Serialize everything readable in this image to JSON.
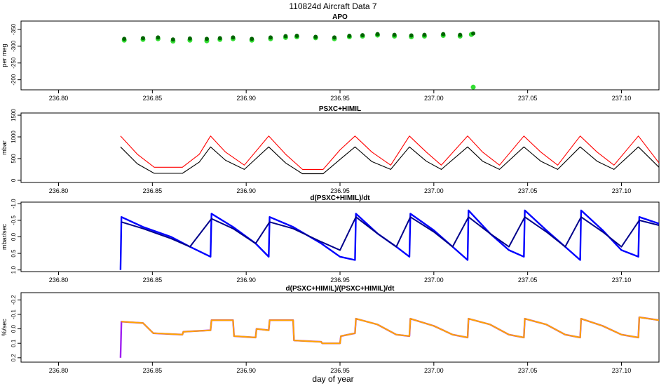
{
  "figure": {
    "title": "110824d   Aircraft Data 7",
    "xlabel": "day of year"
  },
  "colors": {
    "apo_light": "#33dd33",
    "apo_dark": "#006400",
    "psxc_upper": "#ff0000",
    "psxc_lower": "#000000",
    "deriv_light": "#0000ff",
    "deriv_dark": "#00008b",
    "pct_purple": "#a020f0",
    "pct_orange": "#ffa500"
  },
  "chart_data": [
    {
      "type": "scatter",
      "title": "APO",
      "xlabel": "",
      "ylabel": "per meg",
      "xlim": [
        236.78,
        237.12
      ],
      "ylim": [
        -170,
        -375
      ],
      "inverted_y": true,
      "x_ticks": [
        "236.80",
        "236.85",
        "236.90",
        "236.95",
        "237.00",
        "237.05",
        "237.10"
      ],
      "y_ticks": [
        "-200",
        "-250",
        "-300",
        "-350"
      ],
      "y_tick_values": [
        -200,
        -250,
        -300,
        -350
      ],
      "series": [
        {
          "color": "#33dd33",
          "x": [
            236.835,
            236.845,
            236.853,
            236.861,
            236.87,
            236.879,
            236.886,
            236.893,
            236.903,
            236.913,
            236.921,
            236.927,
            236.937,
            236.947,
            236.955,
            236.962,
            236.97,
            236.979,
            236.988,
            236.995,
            237.005,
            237.014,
            237.02,
            237.021
          ],
          "y": [
            -318,
            -320,
            -322,
            -315,
            -318,
            -316,
            -320,
            -322,
            -318,
            -322,
            -326,
            -328,
            -325,
            -322,
            -328,
            -330,
            -333,
            -330,
            -328,
            -330,
            -332,
            -330,
            -335,
            -178
          ]
        },
        {
          "color": "#006400",
          "x": [
            236.835,
            236.845,
            236.853,
            236.861,
            236.87,
            236.879,
            236.886,
            236.893,
            236.903,
            236.913,
            236.921,
            236.927,
            236.937,
            236.947,
            236.955,
            236.962,
            236.97,
            236.979,
            236.988,
            236.995,
            237.005,
            237.014,
            237.021
          ],
          "y": [
            -322,
            -324,
            -326,
            -320,
            -323,
            -322,
            -324,
            -326,
            -322,
            -326,
            -330,
            -331,
            -328,
            -326,
            -331,
            -333,
            -336,
            -334,
            -332,
            -334,
            -336,
            -334,
            -338
          ]
        }
      ]
    },
    {
      "type": "line",
      "title": "PSXC+HIMIL",
      "xlabel": "",
      "ylabel": "mbar",
      "xlim": [
        236.78,
        237.12
      ],
      "ylim": [
        -50,
        1550
      ],
      "x_ticks": [
        "236.80",
        "236.85",
        "236.90",
        "236.95",
        "237.00",
        "237.05",
        "237.10"
      ],
      "y_ticks": [
        "0",
        "500",
        "1000",
        "1500"
      ],
      "y_tick_values": [
        0,
        500,
        1000,
        1500
      ],
      "series": [
        {
          "color": "#ff0000",
          "x": [
            236.833,
            236.842,
            236.851,
            236.866,
            236.875,
            236.881,
            236.889,
            236.899,
            236.912,
            236.921,
            236.93,
            236.941,
            236.95,
            236.958,
            236.967,
            236.977,
            236.987,
            236.996,
            237.004,
            237.018,
            237.026,
            237.035,
            237.048,
            237.057,
            237.066,
            237.078,
            237.087,
            237.096,
            237.109,
            237.12
          ],
          "y": [
            1020,
            600,
            300,
            300,
            600,
            1020,
            650,
            350,
            1020,
            600,
            250,
            250,
            700,
            1020,
            650,
            350,
            1020,
            650,
            350,
            1020,
            650,
            350,
            1020,
            650,
            350,
            1020,
            650,
            350,
            1020,
            400
          ]
        },
        {
          "color": "#000000",
          "x": [
            236.833,
            236.842,
            236.851,
            236.866,
            236.875,
            236.881,
            236.889,
            236.899,
            236.912,
            236.921,
            236.93,
            236.941,
            236.95,
            236.958,
            236.967,
            236.977,
            236.987,
            236.996,
            237.004,
            237.018,
            237.026,
            237.035,
            237.048,
            237.057,
            237.066,
            237.078,
            237.087,
            237.096,
            237.109,
            237.12
          ],
          "y": [
            770,
            380,
            160,
            160,
            420,
            770,
            460,
            250,
            770,
            400,
            150,
            150,
            480,
            770,
            430,
            250,
            770,
            440,
            250,
            770,
            440,
            250,
            770,
            440,
            250,
            770,
            440,
            250,
            770,
            300
          ]
        }
      ]
    },
    {
      "type": "line",
      "title": "d(PSXC+HIMIL)/dt",
      "xlabel": "",
      "ylabel": "mbar/sec",
      "xlim": [
        236.78,
        237.12
      ],
      "ylim": [
        1.05,
        -1.05
      ],
      "inverted_y": true,
      "x_ticks": [
        "236.80",
        "236.85",
        "236.90",
        "236.95",
        "237.00",
        "237.05",
        "237.10"
      ],
      "y_ticks": [
        "-1.0",
        "-0.5",
        "0.0",
        "0.5",
        "1.0"
      ],
      "y_tick_values": [
        -1.0,
        -0.5,
        0.0,
        0.5,
        1.0
      ],
      "series": [
        {
          "color": "#0000ff",
          "x": [
            236.833,
            236.8335,
            236.845,
            236.86,
            236.87,
            236.881,
            236.8815,
            236.893,
            236.905,
            236.912,
            236.9125,
            236.925,
            236.94,
            236.95,
            236.958,
            236.9585,
            236.97,
            236.98,
            236.987,
            236.9875,
            237.0,
            237.01,
            237.018,
            237.0185,
            237.03,
            237.04,
            237.048,
            237.0485,
            237.06,
            237.07,
            237.078,
            237.0785,
            237.09,
            237.1,
            237.109,
            237.1095,
            237.12
          ],
          "y": [
            1.0,
            -0.6,
            -0.3,
            0.0,
            0.3,
            0.6,
            -0.7,
            -0.3,
            0.2,
            0.6,
            -0.6,
            -0.3,
            0.2,
            0.6,
            0.7,
            -0.7,
            -0.1,
            0.3,
            0.6,
            -0.7,
            -0.2,
            0.3,
            0.7,
            -0.8,
            -0.1,
            0.4,
            0.6,
            -0.8,
            -0.2,
            0.3,
            0.7,
            -0.8,
            -0.2,
            0.4,
            0.6,
            -0.6,
            -0.4
          ]
        },
        {
          "color": "#00008b",
          "x": [
            236.8335,
            236.845,
            236.86,
            236.87,
            236.8815,
            236.893,
            236.905,
            236.9125,
            236.925,
            236.94,
            236.95,
            236.9585,
            236.97,
            236.98,
            236.9875,
            237.0,
            237.01,
            237.0185,
            237.03,
            237.04,
            237.0485,
            237.06,
            237.07,
            237.0785,
            237.09,
            237.1,
            237.1095,
            237.12
          ],
          "y": [
            -0.45,
            -0.25,
            0.05,
            0.3,
            -0.55,
            -0.25,
            0.2,
            -0.45,
            -0.25,
            0.15,
            0.4,
            -0.6,
            -0.1,
            0.3,
            -0.6,
            -0.15,
            0.3,
            -0.6,
            -0.1,
            0.3,
            -0.6,
            -0.15,
            0.3,
            -0.6,
            -0.15,
            0.3,
            -0.5,
            -0.35
          ]
        }
      ]
    },
    {
      "type": "line",
      "title": "d(PSXC+HIMIL)/(PSXC+HIMIL)/dt",
      "xlabel": "day of year",
      "ylabel": "%/sec",
      "xlim": [
        236.78,
        237.12
      ],
      "ylim": [
        0.23,
        -0.25
      ],
      "inverted_y": true,
      "x_ticks": [
        "236.80",
        "236.85",
        "236.90",
        "236.95",
        "237.00",
        "237.05",
        "237.10"
      ],
      "y_ticks": [
        "-0.2",
        "-0.1",
        "0.0",
        "0.1",
        "0.2"
      ],
      "y_tick_values": [
        -0.2,
        -0.1,
        0.0,
        0.1,
        0.2
      ],
      "series": [
        {
          "color": "#a020f0",
          "x": [
            236.833,
            236.8335,
            236.845,
            236.8505,
            236.866,
            236.8665,
            236.881,
            236.8815,
            236.893,
            236.8935,
            236.905,
            236.9055,
            236.912,
            236.9125,
            236.925,
            236.9255,
            236.94,
            236.9405,
            236.95,
            236.9505,
            236.958,
            236.9585,
            236.97,
            236.98,
            236.987,
            236.9875,
            237.0,
            237.01,
            237.018,
            237.0185,
            237.03,
            237.04,
            237.048,
            237.0485,
            237.06,
            237.07,
            237.078,
            237.0785,
            237.09,
            237.1,
            237.109,
            237.1095,
            237.12
          ],
          "y": [
            0.2,
            -0.05,
            -0.04,
            0.03,
            0.04,
            0.02,
            0.01,
            -0.06,
            -0.06,
            0.05,
            0.06,
            0.0,
            0.01,
            -0.06,
            -0.06,
            0.08,
            0.09,
            0.1,
            0.1,
            0.05,
            0.03,
            -0.07,
            -0.03,
            0.04,
            0.05,
            -0.07,
            -0.02,
            0.04,
            0.06,
            -0.07,
            -0.03,
            0.04,
            0.06,
            -0.07,
            -0.03,
            0.04,
            0.06,
            -0.07,
            -0.02,
            0.04,
            0.06,
            -0.08,
            -0.06
          ]
        },
        {
          "color": "#ffa500",
          "x": [
            236.8335,
            236.845,
            236.8505,
            236.866,
            236.8665,
            236.881,
            236.8815,
            236.893,
            236.8935,
            236.905,
            236.9055,
            236.912,
            236.9125,
            236.925,
            236.9255,
            236.94,
            236.9405,
            236.95,
            236.9505,
            236.958,
            236.9585,
            236.97,
            236.98,
            236.987,
            236.9875,
            237.0,
            237.01,
            237.018,
            237.0185,
            237.03,
            237.04,
            237.048,
            237.0485,
            237.06,
            237.07,
            237.078,
            237.0785,
            237.09,
            237.1,
            237.109,
            237.1095,
            237.12
          ],
          "y": [
            -0.05,
            -0.04,
            0.03,
            0.04,
            0.02,
            0.01,
            -0.06,
            -0.06,
            0.05,
            0.06,
            0.0,
            0.01,
            -0.06,
            -0.06,
            0.08,
            0.09,
            0.1,
            0.1,
            0.05,
            0.03,
            -0.07,
            -0.03,
            0.04,
            0.05,
            -0.07,
            -0.02,
            0.04,
            0.06,
            -0.07,
            -0.03,
            0.04,
            0.06,
            -0.07,
            -0.03,
            0.04,
            0.06,
            -0.07,
            -0.02,
            0.04,
            0.06,
            -0.08,
            -0.06
          ]
        }
      ]
    }
  ]
}
